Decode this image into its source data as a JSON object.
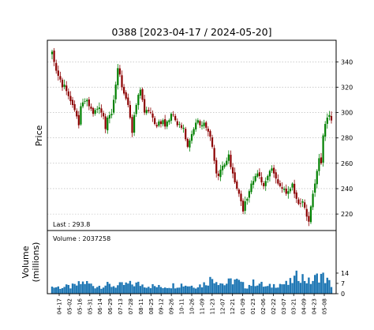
{
  "chart_data": [
    {
      "type": "candlestick",
      "title": "0388   [2023-04-17 / 2024-05-20]",
      "ylabel": "Price",
      "ylim": [
        207,
        357
      ],
      "yticks": [
        220,
        240,
        260,
        280,
        300,
        320,
        340
      ],
      "grid": true,
      "up_color": "#008000",
      "down_color": "#8b0000",
      "annotation": "Last : 293.8",
      "series": [
        {
          "x": [
            "2023-04-17",
            "2023-04-19",
            "2023-04-21",
            "2023-04-24",
            "2023-04-26",
            "2023-04-28",
            "2023-05-02",
            "2023-05-04",
            "2023-05-08",
            "2023-05-10",
            "2023-05-12",
            "2023-05-16",
            "2023-05-18",
            "2023-05-22",
            "2023-05-24",
            "2023-05-26",
            "2023-05-30",
            "2023-06-01",
            "2023-06-05",
            "2023-06-07",
            "2023-06-09",
            "2023-06-13",
            "2023-06-15",
            "2023-06-19",
            "2023-06-21",
            "2023-06-26",
            "2023-06-29",
            "2023-07-04",
            "2023-07-06",
            "2023-07-10",
            "2023-07-12",
            "2023-07-14",
            "2023-07-18",
            "2023-07-20",
            "2023-07-24",
            "2023-07-26",
            "2023-07-28",
            "2023-08-01",
            "2023-08-03",
            "2023-08-07",
            "2023-08-09",
            "2023-08-11",
            "2023-08-15",
            "2023-08-17",
            "2023-08-21",
            "2023-08-23",
            "2023-08-25",
            "2023-08-29",
            "2023-08-31",
            "2023-09-04",
            "2023-09-06",
            "2023-09-08",
            "2023-09-12",
            "2023-09-14",
            "2023-09-18",
            "2023-09-20",
            "2023-09-22",
            "2023-09-26",
            "2023-09-28",
            "2023-10-03",
            "2023-10-05",
            "2023-10-09",
            "2023-10-11",
            "2023-10-13",
            "2023-10-17",
            "2023-10-19",
            "2023-10-24",
            "2023-10-26",
            "2023-10-30",
            "2023-11-01",
            "2023-11-03",
            "2023-11-07",
            "2023-11-09",
            "2023-11-13",
            "2023-11-15",
            "2023-11-17",
            "2023-11-21",
            "2023-11-23",
            "2023-11-27",
            "2023-11-29",
            "2023-12-01",
            "2023-12-05",
            "2023-12-07",
            "2023-12-11",
            "2023-12-13",
            "2023-12-15",
            "2023-12-19",
            "2023-12-21",
            "2023-12-27",
            "2023-12-29",
            "2024-01-03",
            "2024-01-05",
            "2024-01-09",
            "2024-01-11",
            "2024-01-15",
            "2024-01-17",
            "2024-01-19",
            "2024-01-23",
            "2024-01-25",
            "2024-01-29",
            "2024-01-31",
            "2024-02-02",
            "2024-02-06",
            "2024-02-08",
            "2024-02-14",
            "2024-02-16",
            "2024-02-20",
            "2024-02-22",
            "2024-02-26",
            "2024-02-28",
            "2024-03-01",
            "2024-03-05",
            "2024-03-07",
            "2024-03-11",
            "2024-03-13",
            "2024-03-15",
            "2024-03-19",
            "2024-03-21",
            "2024-03-25",
            "2024-03-27",
            "2024-04-02",
            "2024-04-04",
            "2024-04-08",
            "2024-04-10",
            "2024-04-12",
            "2024-04-16",
            "2024-04-18",
            "2024-04-22",
            "2024-04-24",
            "2024-04-26",
            "2024-04-30",
            "2024-05-03",
            "2024-05-07",
            "2024-05-09",
            "2024-05-13",
            "2024-05-16",
            "2024-05-20"
          ],
          "close": [
            348,
            340,
            333,
            329,
            326,
            320,
            322,
            317,
            313,
            309,
            306,
            302,
            297,
            290,
            305,
            308,
            309,
            310,
            305,
            303,
            299,
            302,
            303,
            304,
            300,
            297,
            287,
            296,
            298,
            299,
            310,
            322,
            335,
            330,
            320,
            315,
            311,
            306,
            296,
            284,
            298,
            306,
            314,
            318,
            310,
            300,
            302,
            301,
            300,
            296,
            291,
            289,
            293,
            291,
            294,
            289,
            293,
            294,
            299,
            298,
            294,
            290,
            291,
            288,
            288,
            279,
            273,
            278,
            283,
            287,
            292,
            294,
            290,
            290,
            292,
            288,
            285,
            281,
            273,
            262,
            252,
            250,
            255,
            258,
            259,
            262,
            267,
            257,
            252,
            245,
            240,
            236,
            230,
            222,
            230,
            232,
            238,
            244,
            246,
            250,
            252,
            250,
            245,
            242,
            246,
            250,
            254,
            256,
            252,
            248,
            244,
            242,
            240,
            240,
            236,
            238,
            240,
            244,
            236,
            232,
            228,
            228,
            230,
            225,
            218,
            214,
            226,
            236,
            244,
            254,
            264,
            260,
            282,
            291,
            296,
            298,
            293.8
          ]
        }
      ]
    },
    {
      "type": "bar",
      "title": "",
      "ylabel": "Volume\n(millions)",
      "ylim": [
        0,
        43
      ],
      "yticks": [
        0,
        7,
        14
      ],
      "annotation": "Volume : 2037258",
      "bar_color": "#1f77b4",
      "categories": [
        "04-17",
        "05-02",
        "05-16",
        "05-31",
        "06-14",
        "06-29",
        "07-13",
        "07-28",
        "08-11",
        "08-25",
        "09-12",
        "09-26",
        "10-11",
        "10-26",
        "11-09",
        "11-23",
        "12-07",
        "12-21",
        "01-09",
        "01-23",
        "02-06",
        "02-22",
        "03-07",
        "03-21",
        "04-09",
        "04-23",
        "05-08"
      ],
      "values": [
        4.6,
        4.4,
        5.0,
        7.8,
        5.1,
        5.9,
        5.3,
        6.4,
        6.6,
        5.6,
        4.5,
        5.4,
        6.4,
        5.4,
        6.0,
        11.0,
        6.3,
        9.5,
        4.9,
        8.0,
        4.3,
        6.7,
        6.5,
        13.0,
        7.6,
        13.1,
        6.0
      ]
    }
  ]
}
